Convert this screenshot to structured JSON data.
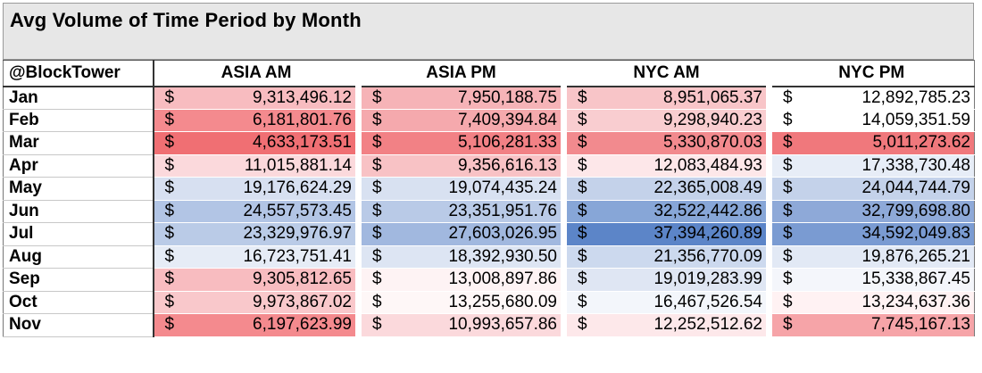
{
  "title": "Avg Volume of Time Period by Month",
  "header": {
    "handle": "@BlockTower",
    "columns": [
      "ASIA AM",
      "ASIA PM",
      "NYC AM",
      "NYC PM"
    ]
  },
  "currency_symbol": "$",
  "rows": [
    {
      "month": "Jan",
      "values": [
        "9,313,496.12",
        "7,950,188.75",
        "8,951,065.37",
        "12,892,785.23"
      ],
      "colors": [
        "#f8bcc0",
        "#f6b3b7",
        "#f8c5c8",
        "#ffffff"
      ]
    },
    {
      "month": "Feb",
      "values": [
        "6,181,801.76",
        "7,409,394.84",
        "9,298,940.23",
        "14,059,351.59"
      ],
      "colors": [
        "#f48a8e",
        "#f5a9ad",
        "#f9cdd0",
        "#ffffff"
      ]
    },
    {
      "month": "Mar",
      "values": [
        "4,633,173.51",
        "5,106,281.33",
        "5,330,870.03",
        "5,011,273.62"
      ],
      "colors": [
        "#f06f73",
        "#f28185",
        "#f28a8e",
        "#f0787c"
      ]
    },
    {
      "month": "Apr",
      "values": [
        "11,015,881.14",
        "9,356,616.13",
        "12,083,484.93",
        "17,338,730.48"
      ],
      "colors": [
        "#fbd9dc",
        "#f8c2c5",
        "#fde7e9",
        "#e7edf7"
      ]
    },
    {
      "month": "May",
      "values": [
        "19,176,624.29",
        "19,074,435.24",
        "22,365,008.49",
        "24,044,744.79"
      ],
      "colors": [
        "#d7e0f1",
        "#d8e1f1",
        "#c4d2ea",
        "#c4d2ea"
      ]
    },
    {
      "month": "Jun",
      "values": [
        "24,557,573.45",
        "23,351,951.76",
        "32,522,442.86",
        "32,799,698.80"
      ],
      "colors": [
        "#b2c5e5",
        "#b9cae7",
        "#87a6d7",
        "#8ea9d8"
      ]
    },
    {
      "month": "Jul",
      "values": [
        "23,329,976.97",
        "27,603,026.95",
        "37,394,260.89",
        "34,592,049.83"
      ],
      "colors": [
        "#bacbe7",
        "#a1b8df",
        "#5c85c8",
        "#7a9bd2"
      ]
    },
    {
      "month": "Aug",
      "values": [
        "16,723,751.41",
        "18,392,930.50",
        "21,356,770.09",
        "19,876,265.21"
      ],
      "colors": [
        "#e6ecf6",
        "#dde5f3",
        "#ccd9ee",
        "#e2e9f5"
      ]
    },
    {
      "month": "Sep",
      "values": [
        "9,305,812.65",
        "13,008,897.86",
        "19,019,283.99",
        "15,338,867.45"
      ],
      "colors": [
        "#f8bcc0",
        "#fef3f4",
        "#dfe6f3",
        "#f4f6fb"
      ]
    },
    {
      "month": "Oct",
      "values": [
        "9,973,867.02",
        "13,255,680.09",
        "16,467,526.54",
        "13,234,637.36"
      ],
      "colors": [
        "#f9c8cb",
        "#fef7f7",
        "#f3f6fb",
        "#fff2f3"
      ]
    },
    {
      "month": "Nov",
      "values": [
        "6,197,623.99",
        "10,993,657.86",
        "12,252,512.62",
        "7,745,167.13"
      ],
      "colors": [
        "#f48a8e",
        "#fbd9dc",
        "#fde8ea",
        "#f6a4a8"
      ]
    }
  ]
}
